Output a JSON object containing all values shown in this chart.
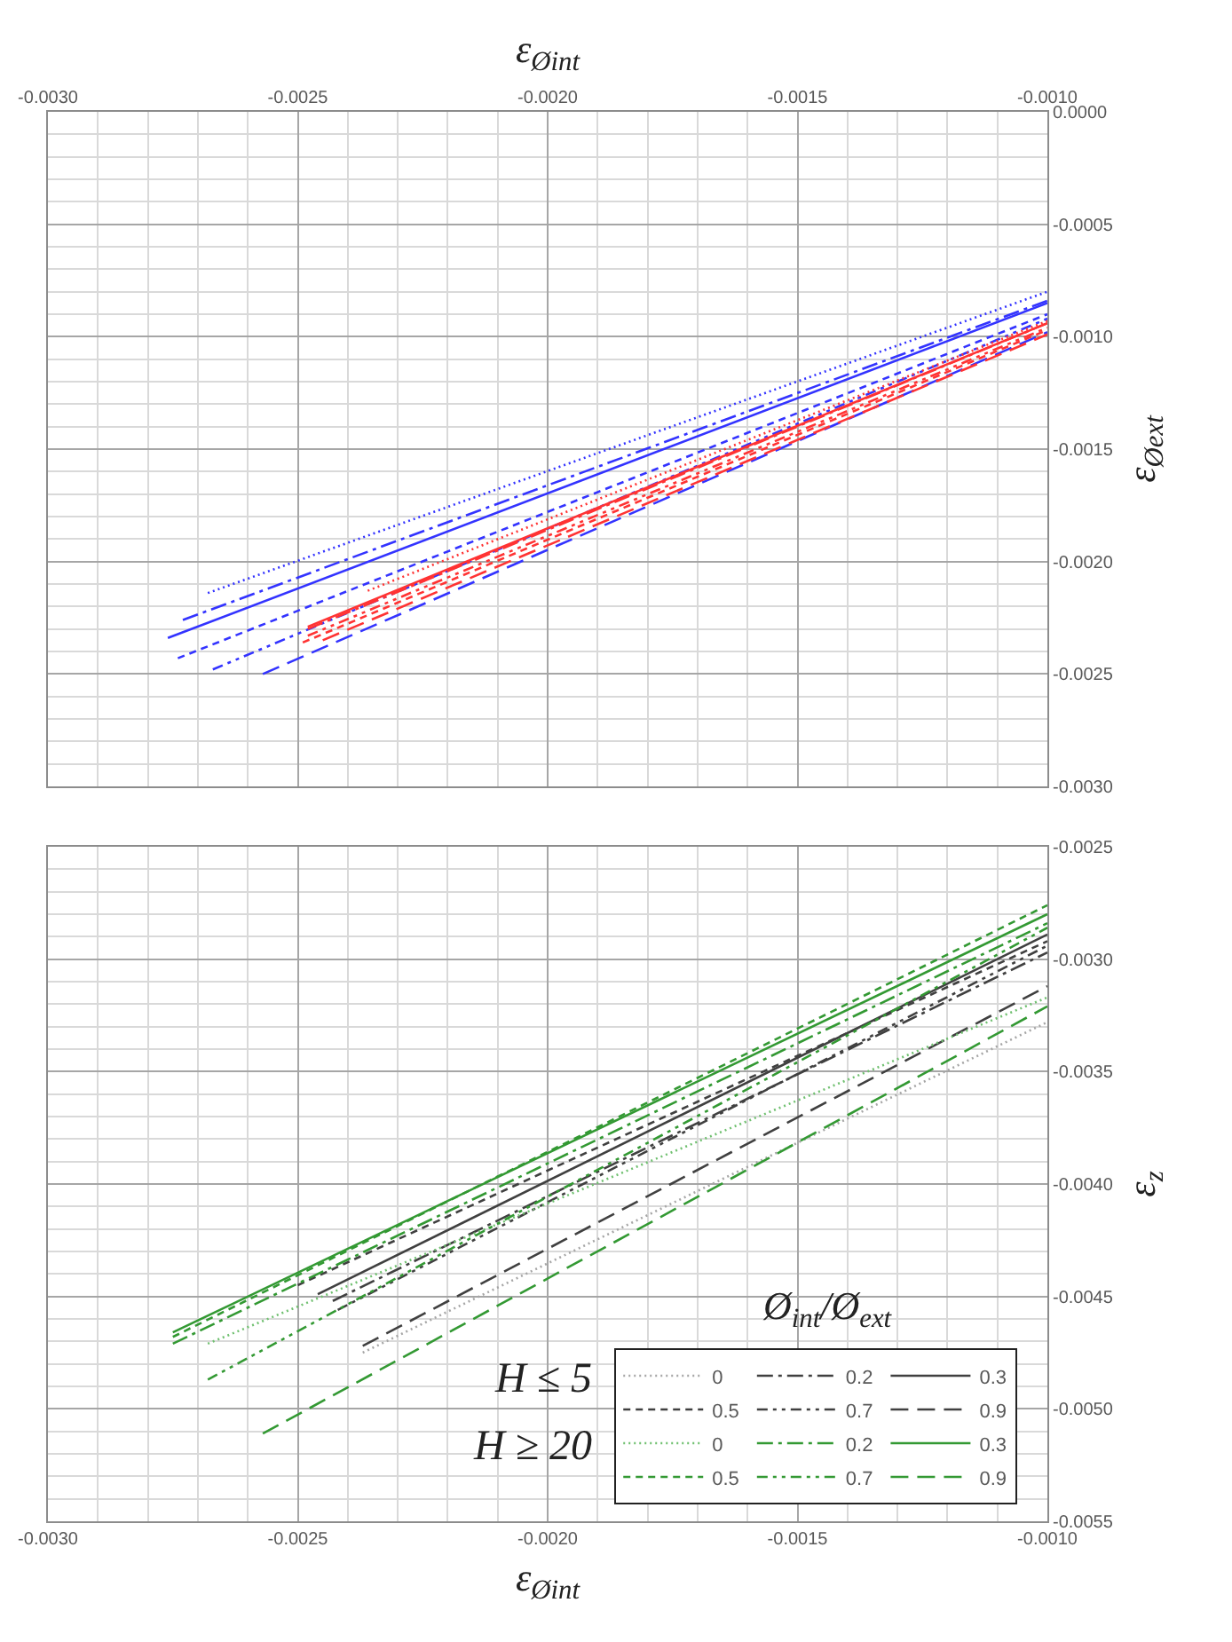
{
  "chart_data": [
    {
      "type": "line",
      "xlabel": "ε$_{Øint}$",
      "ylabel": "ε$_{Øext}$",
      "xlim": [
        -0.003,
        -0.001
      ],
      "ylim": [
        -0.003,
        0
      ],
      "xticks": [
        {
          "value": -0.003,
          "label": "-0.0030"
        },
        {
          "value": -0.0029,
          "label": null
        },
        {
          "value": -0.0028,
          "label": null
        },
        {
          "value": -0.0027,
          "label": null
        },
        {
          "value": -0.0026,
          "label": null
        },
        {
          "value": -0.0025,
          "label": "-0.0025"
        },
        {
          "value": -0.0024,
          "label": null
        },
        {
          "value": -0.0023,
          "label": null
        },
        {
          "value": -0.0022,
          "label": null
        },
        {
          "value": -0.0021,
          "label": null
        },
        {
          "value": -0.002,
          "label": "-0.0020"
        },
        {
          "value": -0.0019,
          "label": null
        },
        {
          "value": -0.0018,
          "label": null
        },
        {
          "value": -0.0017,
          "label": null
        },
        {
          "value": -0.0016,
          "label": null
        },
        {
          "value": -0.0015,
          "label": "-0.0015"
        },
        {
          "value": -0.0014,
          "label": null
        },
        {
          "value": -0.0013,
          "label": null
        },
        {
          "value": -0.0012,
          "label": null
        },
        {
          "value": -0.0011,
          "label": null
        },
        {
          "value": -0.001,
          "label": "-0.0010"
        }
      ],
      "yticks": [
        {
          "value": 0,
          "label": "0.0000"
        },
        {
          "value": -0.0001,
          "label": null
        },
        {
          "value": -0.0002,
          "label": null
        },
        {
          "value": -0.0003,
          "label": null
        },
        {
          "value": -0.0004,
          "label": null
        },
        {
          "value": -0.0005,
          "label": "-0.0005"
        },
        {
          "value": -0.0006,
          "label": null
        },
        {
          "value": -0.0007,
          "label": null
        },
        {
          "value": -0.0008,
          "label": null
        },
        {
          "value": -0.0009,
          "label": null
        },
        {
          "value": -0.001,
          "label": "-0.0010"
        },
        {
          "value": -0.0011,
          "label": null
        },
        {
          "value": -0.0012,
          "label": null
        },
        {
          "value": -0.0013,
          "label": null
        },
        {
          "value": -0.0014,
          "label": null
        },
        {
          "value": -0.0015,
          "label": "-0.0015"
        },
        {
          "value": -0.0016,
          "label": null
        },
        {
          "value": -0.0017,
          "label": null
        },
        {
          "value": -0.0018,
          "label": null
        },
        {
          "value": -0.0019,
          "label": null
        },
        {
          "value": -0.002,
          "label": "-0.0020"
        },
        {
          "value": -0.0021,
          "label": null
        },
        {
          "value": -0.0022,
          "label": null
        },
        {
          "value": -0.0023,
          "label": null
        },
        {
          "value": -0.0024,
          "label": null
        },
        {
          "value": -0.0025,
          "label": "-0.0025"
        },
        {
          "value": -0.0026,
          "label": null
        },
        {
          "value": -0.0027,
          "label": null
        },
        {
          "value": -0.0028,
          "label": null
        },
        {
          "value": -0.0029,
          "label": null
        },
        {
          "value": -0.003,
          "label": "-0.0030"
        }
      ],
      "grid": true,
      "series": [
        {
          "color": "#3333ff",
          "line_style": "dotted",
          "x": [
            -0.00268,
            -0.001
          ],
          "values": [
            -0.00214,
            -0.0008
          ]
        },
        {
          "color": "#3333ff",
          "line_style": "dashdot",
          "x": [
            -0.00273,
            -0.001
          ],
          "values": [
            -0.00226,
            -0.00084
          ]
        },
        {
          "color": "#3333ff",
          "line_style": "solid",
          "x": [
            -0.00276,
            -0.001
          ],
          "values": [
            -0.00234,
            -0.00085
          ]
        },
        {
          "color": "#3333ff",
          "line_style": "dashed",
          "x": [
            -0.00274,
            -0.001
          ],
          "values": [
            -0.00243,
            -0.0009
          ]
        },
        {
          "color": "#3333ff",
          "line_style": "dashdotdot",
          "x": [
            -0.00267,
            -0.001
          ],
          "values": [
            -0.00248,
            -0.00092
          ]
        },
        {
          "color": "#3333ff",
          "line_style": "longdash",
          "x": [
            -0.00257,
            -0.001
          ],
          "values": [
            -0.0025,
            -0.00098
          ]
        },
        {
          "color": "#ff3333",
          "line_style": "dotted",
          "x": [
            -0.00236,
            -0.001
          ],
          "values": [
            -0.00213,
            -0.00093
          ]
        },
        {
          "color": "#ff3333",
          "line_style": "dashdot",
          "x": [
            -0.00248,
            -0.001
          ],
          "values": [
            -0.0023,
            -0.00094
          ]
        },
        {
          "color": "#ff3333",
          "line_style": "solid",
          "x": [
            -0.00248,
            -0.001
          ],
          "values": [
            -0.00229,
            -0.00094
          ]
        },
        {
          "color": "#ff3333",
          "line_style": "dashed",
          "x": [
            -0.00249,
            -0.001
          ],
          "values": [
            -0.00236,
            -0.00097
          ]
        },
        {
          "color": "#ff3333",
          "line_style": "dashdotdot",
          "x": [
            -0.00248,
            -0.001
          ],
          "values": [
            -0.00233,
            -0.00096
          ]
        },
        {
          "color": "#ff3333",
          "line_style": "longdash",
          "x": [
            -0.00245,
            -0.001
          ],
          "values": [
            -0.00235,
            -0.00099
          ]
        }
      ]
    },
    {
      "type": "line",
      "xlabel": "ε$_{Øint}$",
      "ylabel": "ε$_{z}$",
      "legend_title": "Ø$_{int}$/Ø$_{ext}$",
      "legend": "bottom right",
      "annotations": [
        "H ≤ 5",
        "H ≥ 20"
      ],
      "xlim": [
        -0.003,
        -0.001
      ],
      "ylim": [
        -0.0055,
        -0.0025
      ],
      "xticks": [
        {
          "value": -0.003,
          "label": "-0.0030"
        },
        {
          "value": -0.0029,
          "label": null
        },
        {
          "value": -0.0028,
          "label": null
        },
        {
          "value": -0.0027,
          "label": null
        },
        {
          "value": -0.0026,
          "label": null
        },
        {
          "value": -0.0025,
          "label": "-0.0025"
        },
        {
          "value": -0.0024,
          "label": null
        },
        {
          "value": -0.0023,
          "label": null
        },
        {
          "value": -0.0022,
          "label": null
        },
        {
          "value": -0.0021,
          "label": null
        },
        {
          "value": -0.002,
          "label": "-0.0020"
        },
        {
          "value": -0.0019,
          "label": null
        },
        {
          "value": -0.0018,
          "label": null
        },
        {
          "value": -0.0017,
          "label": null
        },
        {
          "value": -0.0016,
          "label": null
        },
        {
          "value": -0.0015,
          "label": "-0.0015"
        },
        {
          "value": -0.0014,
          "label": null
        },
        {
          "value": -0.0013,
          "label": null
        },
        {
          "value": -0.0012,
          "label": null
        },
        {
          "value": -0.0011,
          "label": null
        },
        {
          "value": -0.001,
          "label": "-0.0010"
        }
      ],
      "yticks": [
        {
          "value": -0.0025,
          "label": "-0.0025"
        },
        {
          "value": -0.0026,
          "label": null
        },
        {
          "value": -0.0027,
          "label": null
        },
        {
          "value": -0.0028,
          "label": null
        },
        {
          "value": -0.0029,
          "label": null
        },
        {
          "value": -0.003,
          "label": "-0.0030"
        },
        {
          "value": -0.0031,
          "label": null
        },
        {
          "value": -0.0032,
          "label": null
        },
        {
          "value": -0.0033,
          "label": null
        },
        {
          "value": -0.0034,
          "label": null
        },
        {
          "value": -0.0035,
          "label": "-0.0035"
        },
        {
          "value": -0.0036,
          "label": null
        },
        {
          "value": -0.0037,
          "label": null
        },
        {
          "value": -0.0038,
          "label": null
        },
        {
          "value": -0.0039,
          "label": null
        },
        {
          "value": -0.004,
          "label": "-0.0040"
        },
        {
          "value": -0.0041,
          "label": null
        },
        {
          "value": -0.0042,
          "label": null
        },
        {
          "value": -0.0043,
          "label": null
        },
        {
          "value": -0.0044,
          "label": null
        },
        {
          "value": -0.0045,
          "label": "-0.0045"
        },
        {
          "value": -0.0046,
          "label": null
        },
        {
          "value": -0.0047,
          "label": null
        },
        {
          "value": -0.0048,
          "label": null
        },
        {
          "value": -0.0049,
          "label": null
        },
        {
          "value": -0.005,
          "label": "-0.0050"
        },
        {
          "value": -0.0051,
          "label": null
        },
        {
          "value": -0.0052,
          "label": null
        },
        {
          "value": -0.0053,
          "label": null
        },
        {
          "value": -0.0054,
          "label": null
        },
        {
          "value": -0.0055,
          "label": "-0.0055"
        }
      ],
      "grid": true,
      "series": [
        {
          "name": "0",
          "color": "#a6a6a6",
          "line_style": "dotted",
          "x": [
            -0.00237,
            -0.001
          ],
          "values": [
            -0.00475,
            -0.00328
          ]
        },
        {
          "name": "0.2",
          "color": "#404040",
          "line_style": "dashdot",
          "x": [
            -0.00243,
            -0.001
          ],
          "values": [
            -0.00452,
            -0.00297
          ]
        },
        {
          "name": "0.3",
          "color": "#404040",
          "line_style": "solid",
          "x": [
            -0.00246,
            -0.001
          ],
          "values": [
            -0.00449,
            -0.00289
          ]
        },
        {
          "name": "0.5",
          "color": "#404040",
          "line_style": "dashed",
          "x": [
            -0.0025,
            -0.001
          ],
          "values": [
            -0.00445,
            -0.00292
          ]
        },
        {
          "name": "0.7",
          "color": "#404040",
          "line_style": "dashdotdot",
          "x": [
            -0.00242,
            -0.001
          ],
          "values": [
            -0.00456,
            -0.00294
          ]
        },
        {
          "name": "0.9",
          "color": "#404040",
          "line_style": "longdash",
          "x": [
            -0.00237,
            -0.001
          ],
          "values": [
            -0.00472,
            -0.00312
          ]
        },
        {
          "name": "0",
          "color": "#70c070",
          "line_style": "dotted",
          "x": [
            -0.00268,
            -0.001
          ],
          "values": [
            -0.00471,
            -0.00317
          ]
        },
        {
          "name": "0.2",
          "color": "#339933",
          "line_style": "dashdot",
          "x": [
            -0.00275,
            -0.001
          ],
          "values": [
            -0.00471,
            -0.00284
          ]
        },
        {
          "name": "0.3",
          "color": "#339933",
          "line_style": "solid",
          "x": [
            -0.00275,
            -0.001
          ],
          "values": [
            -0.00466,
            -0.0028
          ]
        },
        {
          "name": "0.5",
          "color": "#339933",
          "line_style": "dashed",
          "x": [
            -0.00275,
            -0.001
          ],
          "values": [
            -0.00468,
            -0.00276
          ]
        },
        {
          "name": "0.7",
          "color": "#339933",
          "line_style": "dashdotdot",
          "x": [
            -0.00268,
            -0.001
          ],
          "values": [
            -0.00487,
            -0.00286
          ]
        },
        {
          "name": "0.9",
          "color": "#339933",
          "line_style": "longdash",
          "x": [
            -0.00257,
            -0.001
          ],
          "values": [
            -0.00511,
            -0.00321
          ]
        }
      ]
    }
  ]
}
